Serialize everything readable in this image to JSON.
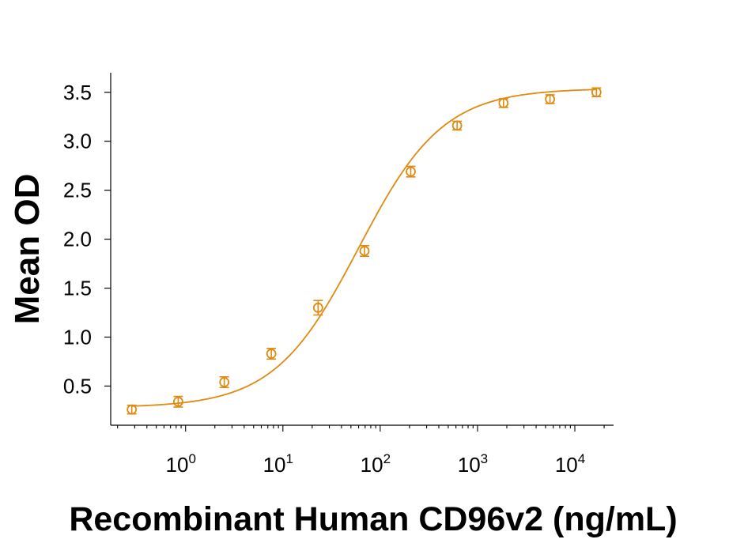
{
  "chart_data": {
    "type": "scatter",
    "title": "",
    "xlabel": "Recombinant Human CD96v2 (ng/mL)",
    "ylabel": "Mean OD",
    "x_scale": "log10",
    "xlim": [
      0.17,
      25000
    ],
    "ylim": [
      0.1,
      3.7
    ],
    "y_ticks": [
      "0.5",
      "1.0",
      "1.5",
      "2.0",
      "2.5",
      "3.0",
      "3.5"
    ],
    "y_tick_values": [
      0.5,
      1.0,
      1.5,
      2.0,
      2.5,
      3.0,
      3.5
    ],
    "x_tick_values": [
      1,
      10,
      100,
      1000,
      10000
    ],
    "x_tick_labels": [
      {
        "base": "10",
        "exp": "0"
      },
      {
        "base": "10",
        "exp": "1"
      },
      {
        "base": "10",
        "exp": "2"
      },
      {
        "base": "10",
        "exp": "3"
      },
      {
        "base": "10",
        "exp": "4"
      }
    ],
    "grid": false,
    "legend": "none",
    "color": "#e08a10",
    "series": [
      {
        "x": [
          0.28,
          0.84,
          2.5,
          7.6,
          23,
          69,
          206,
          617,
          1850,
          5556,
          16667
        ],
        "y": [
          0.26,
          0.34,
          0.54,
          0.83,
          1.3,
          1.88,
          2.69,
          3.16,
          3.39,
          3.43,
          3.5
        ],
        "err": [
          0.02,
          0.03,
          0.03,
          0.03,
          0.05,
          0.03,
          0.03,
          0.02,
          0.02,
          0.02,
          0.02
        ]
      }
    ],
    "fit": {
      "model": "4PL",
      "bottom": 0.28,
      "top": 3.54,
      "ec50": 60,
      "hill": 1.0
    }
  }
}
